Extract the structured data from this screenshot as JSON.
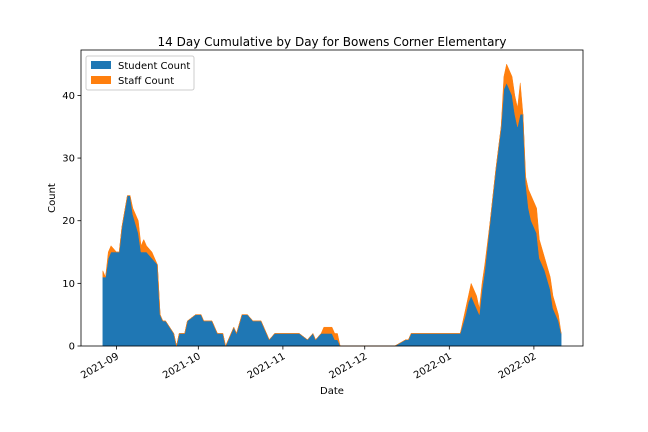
{
  "chart_data": {
    "type": "stacked_area",
    "title": "14 Day Cumulative by Day for Bowens Corner Elementary",
    "x_label": "Date",
    "y_label": "Count",
    "x": [
      "2021-08-27",
      "2021-08-28",
      "2021-08-29",
      "2021-08-30",
      "2021-09-01",
      "2021-09-02",
      "2021-09-03",
      "2021-09-05",
      "2021-09-06",
      "2021-09-07",
      "2021-09-09",
      "2021-09-10",
      "2021-09-11",
      "2021-09-12",
      "2021-09-14",
      "2021-09-16",
      "2021-09-17",
      "2021-09-18",
      "2021-09-19",
      "2021-09-22",
      "2021-09-23",
      "2021-09-24",
      "2021-09-26",
      "2021-09-27",
      "2021-09-30",
      "2021-10-02",
      "2021-10-03",
      "2021-10-06",
      "2021-10-08",
      "2021-10-10",
      "2021-10-11",
      "2021-10-14",
      "2021-10-15",
      "2021-10-17",
      "2021-10-19",
      "2021-10-21",
      "2021-10-24",
      "2021-10-27",
      "2021-10-29",
      "2021-11-07",
      "2021-11-10",
      "2021-11-12",
      "2021-11-13",
      "2021-11-15",
      "2021-11-16",
      "2021-11-19",
      "2021-11-20",
      "2021-11-21",
      "2021-11-22",
      "2021-12-12",
      "2021-12-16",
      "2021-12-17",
      "2021-12-18",
      "2022-01-05",
      "2022-01-07",
      "2022-01-08",
      "2022-01-09",
      "2022-01-11",
      "2022-01-12",
      "2022-01-13",
      "2022-01-14",
      "2022-01-16",
      "2022-01-18",
      "2022-01-20",
      "2022-01-21",
      "2022-01-22",
      "2022-01-24",
      "2022-01-25",
      "2022-01-26",
      "2022-01-27",
      "2022-01-28",
      "2022-01-29",
      "2022-01-30",
      "2022-01-31",
      "2022-02-02",
      "2022-02-03",
      "2022-02-05",
      "2022-02-07",
      "2022-02-08",
      "2022-02-10",
      "2022-02-11"
    ],
    "series": [
      {
        "name": "Student Count",
        "color": "#1f77b4",
        "values": [
          11,
          11,
          14,
          15,
          15,
          15,
          19,
          24,
          24,
          21,
          18,
          15,
          15,
          15,
          14,
          13,
          5,
          4,
          4,
          2,
          0,
          2,
          2,
          4,
          5,
          5,
          4,
          4,
          2,
          2,
          0,
          3,
          2,
          5,
          5,
          4,
          4,
          1,
          2,
          2,
          1,
          2,
          1,
          2,
          2,
          2,
          1,
          1,
          0,
          0,
          1,
          1,
          2,
          2,
          5,
          7,
          8,
          6,
          5,
          9,
          12,
          20,
          28,
          35,
          41,
          42,
          40,
          37,
          35,
          37,
          37,
          26,
          22,
          20,
          18,
          14,
          12,
          9,
          6,
          4,
          2
        ]
      },
      {
        "name": "Staff Count",
        "color": "#ff7f0e",
        "values": [
          1,
          0,
          1,
          1,
          0,
          0,
          0,
          0,
          0,
          1,
          2,
          1,
          2,
          1,
          1,
          0,
          0,
          0,
          0,
          0,
          0,
          0,
          0,
          0,
          0,
          0,
          0,
          0,
          0,
          0,
          0,
          0,
          0,
          0,
          0,
          0,
          0,
          0,
          0,
          0,
          0,
          0,
          0,
          0,
          1,
          1,
          1,
          1,
          0,
          0,
          0,
          0,
          0,
          0,
          1,
          1,
          2,
          2,
          1,
          1,
          1,
          0,
          0,
          0,
          2,
          3,
          3,
          3,
          3,
          5,
          0,
          1,
          3,
          4,
          4,
          3,
          2,
          2,
          2,
          1,
          0
        ]
      }
    ],
    "xlim": [
      "2021-08-19",
      "2022-02-19"
    ],
    "xticks": [
      {
        "value": "2021-09-01",
        "label": "2021-09"
      },
      {
        "value": "2021-10-01",
        "label": "2021-10"
      },
      {
        "value": "2021-11-01",
        "label": "2021-11"
      },
      {
        "value": "2021-12-01",
        "label": "2021-12"
      },
      {
        "value": "2022-01-01",
        "label": "2022-01"
      },
      {
        "value": "2022-02-01",
        "label": "2022-02"
      }
    ],
    "ylim": [
      0,
      47.25
    ],
    "yticks": [
      0,
      10,
      20,
      30,
      40
    ],
    "legend": "upper left"
  }
}
